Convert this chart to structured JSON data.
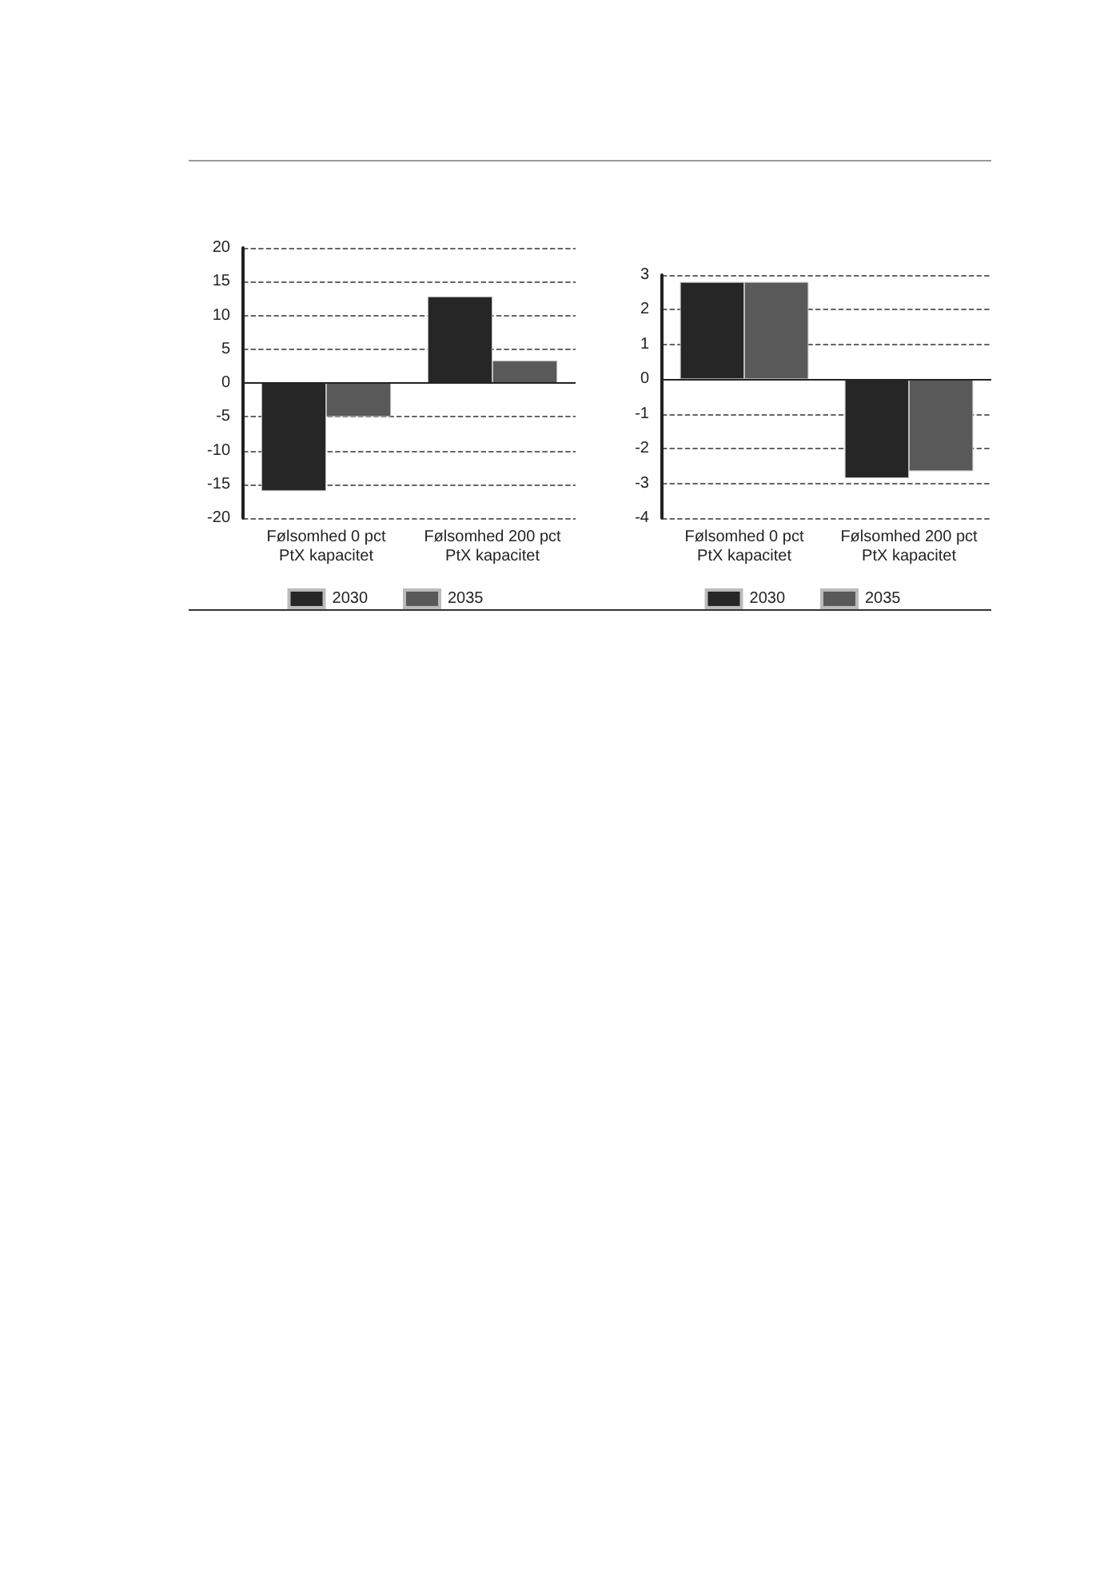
{
  "chart_data": [
    {
      "type": "bar",
      "categories": [
        "Følsomhed 0 pct PtX kapacitet",
        "Følsomhed 200 pct PtX kapacitet"
      ],
      "series": [
        {
          "name": "2030",
          "color": "#262626",
          "values": [
            -16,
            12.8
          ]
        },
        {
          "name": "2035",
          "color": "#595959",
          "values": [
            -5,
            3.3
          ]
        }
      ],
      "ylim": [
        -20,
        20
      ],
      "yticks": [
        -20,
        -15,
        -10,
        -5,
        0,
        5,
        10,
        15,
        20
      ],
      "grid": "y",
      "legend": "bottom"
    },
    {
      "type": "bar",
      "categories": [
        "Følsomhed 0 pct PtX kapacitet",
        "Følsomhed 200 pct PtX kapacitet"
      ],
      "series": [
        {
          "name": "2030",
          "color": "#262626",
          "values": [
            2.8,
            -2.85
          ]
        },
        {
          "name": "2035",
          "color": "#595959",
          "values": [
            2.8,
            -2.65
          ]
        }
      ],
      "ylim": [
        -4,
        3
      ],
      "yticks": [
        -4,
        -3,
        -2,
        -1,
        0,
        1,
        2,
        3
      ],
      "grid": "y",
      "legend": "bottom"
    }
  ]
}
